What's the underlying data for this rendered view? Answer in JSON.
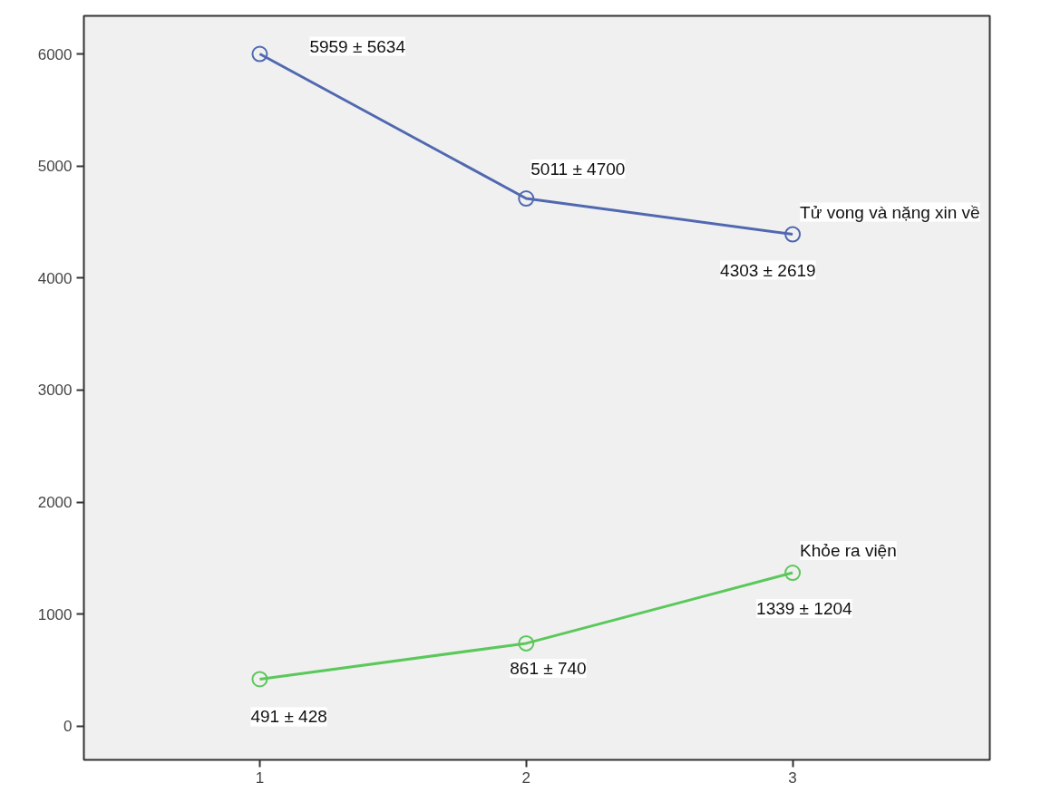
{
  "chart_data": {
    "type": "line",
    "x": [
      1,
      2,
      3
    ],
    "series": [
      {
        "name": "Tử vong và nặng xin về",
        "color": "#5068b0",
        "values": [
          6000,
          4710,
          4390
        ]
      },
      {
        "name": "Khỏe ra viện",
        "color": "#5ac85a",
        "values": [
          420,
          740,
          1370
        ]
      }
    ],
    "annotations": [
      {
        "text": "5959 ± 5634",
        "x": 1,
        "y": 6000
      },
      {
        "text": "5011 ± 4700",
        "x": 2,
        "y": 4710
      },
      {
        "text": "4303 ± 2619",
        "x": 3,
        "y": 4390
      },
      {
        "text": "491 ± 428",
        "x": 1,
        "y": 420
      },
      {
        "text": "861 ± 740",
        "x": 2,
        "y": 740
      },
      {
        "text": "1339 ± 1204",
        "x": 3,
        "y": 1370
      }
    ],
    "xlim": [
      0.34,
      3.74
    ],
    "ylim": [
      -300,
      6340
    ],
    "xticks": [
      1,
      2,
      3
    ],
    "yticks": [
      0,
      1000,
      2000,
      3000,
      4000,
      5000,
      6000
    ],
    "marker": "circle",
    "line_style": "solid",
    "grid": false
  }
}
